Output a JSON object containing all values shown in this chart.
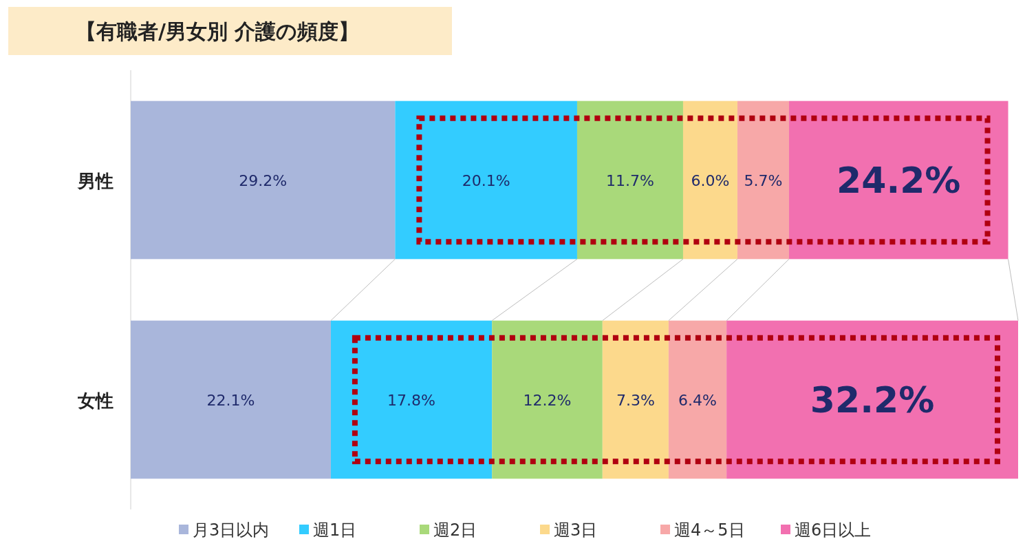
{
  "chart_data": {
    "type": "bar",
    "orientation": "horizontal",
    "stacked": true,
    "title": "【有職者/男女別 介護の頻度】",
    "categories": [
      "男性",
      "女性"
    ],
    "series": [
      {
        "name": "月3日以内",
        "color": "#a9b6db",
        "values": [
          29.2,
          22.1
        ],
        "value_labels": [
          "29.2%",
          "22.1%"
        ]
      },
      {
        "name": "週1日",
        "color": "#33ccff",
        "values": [
          20.1,
          17.8
        ],
        "value_labels": [
          "20.1%",
          "17.8%"
        ]
      },
      {
        "name": "週2日",
        "color": "#a9d97a",
        "values": [
          11.7,
          12.2
        ],
        "value_labels": [
          "11.7%",
          "12.2%"
        ]
      },
      {
        "name": "週3日",
        "color": "#fcd98c",
        "values": [
          6.0,
          7.3
        ],
        "value_labels": [
          "6.0%",
          "7.3%"
        ]
      },
      {
        "name": "週4～5日",
        "color": "#f7a8a8",
        "values": [
          5.7,
          6.4
        ],
        "value_labels": [
          "5.7%",
          "6.4%"
        ]
      },
      {
        "name": "週6日以上",
        "color": "#f270b0",
        "values": [
          24.2,
          32.2
        ],
        "value_labels": [
          "24.2%",
          "32.2%"
        ]
      }
    ],
    "legend": "bottom"
  }
}
